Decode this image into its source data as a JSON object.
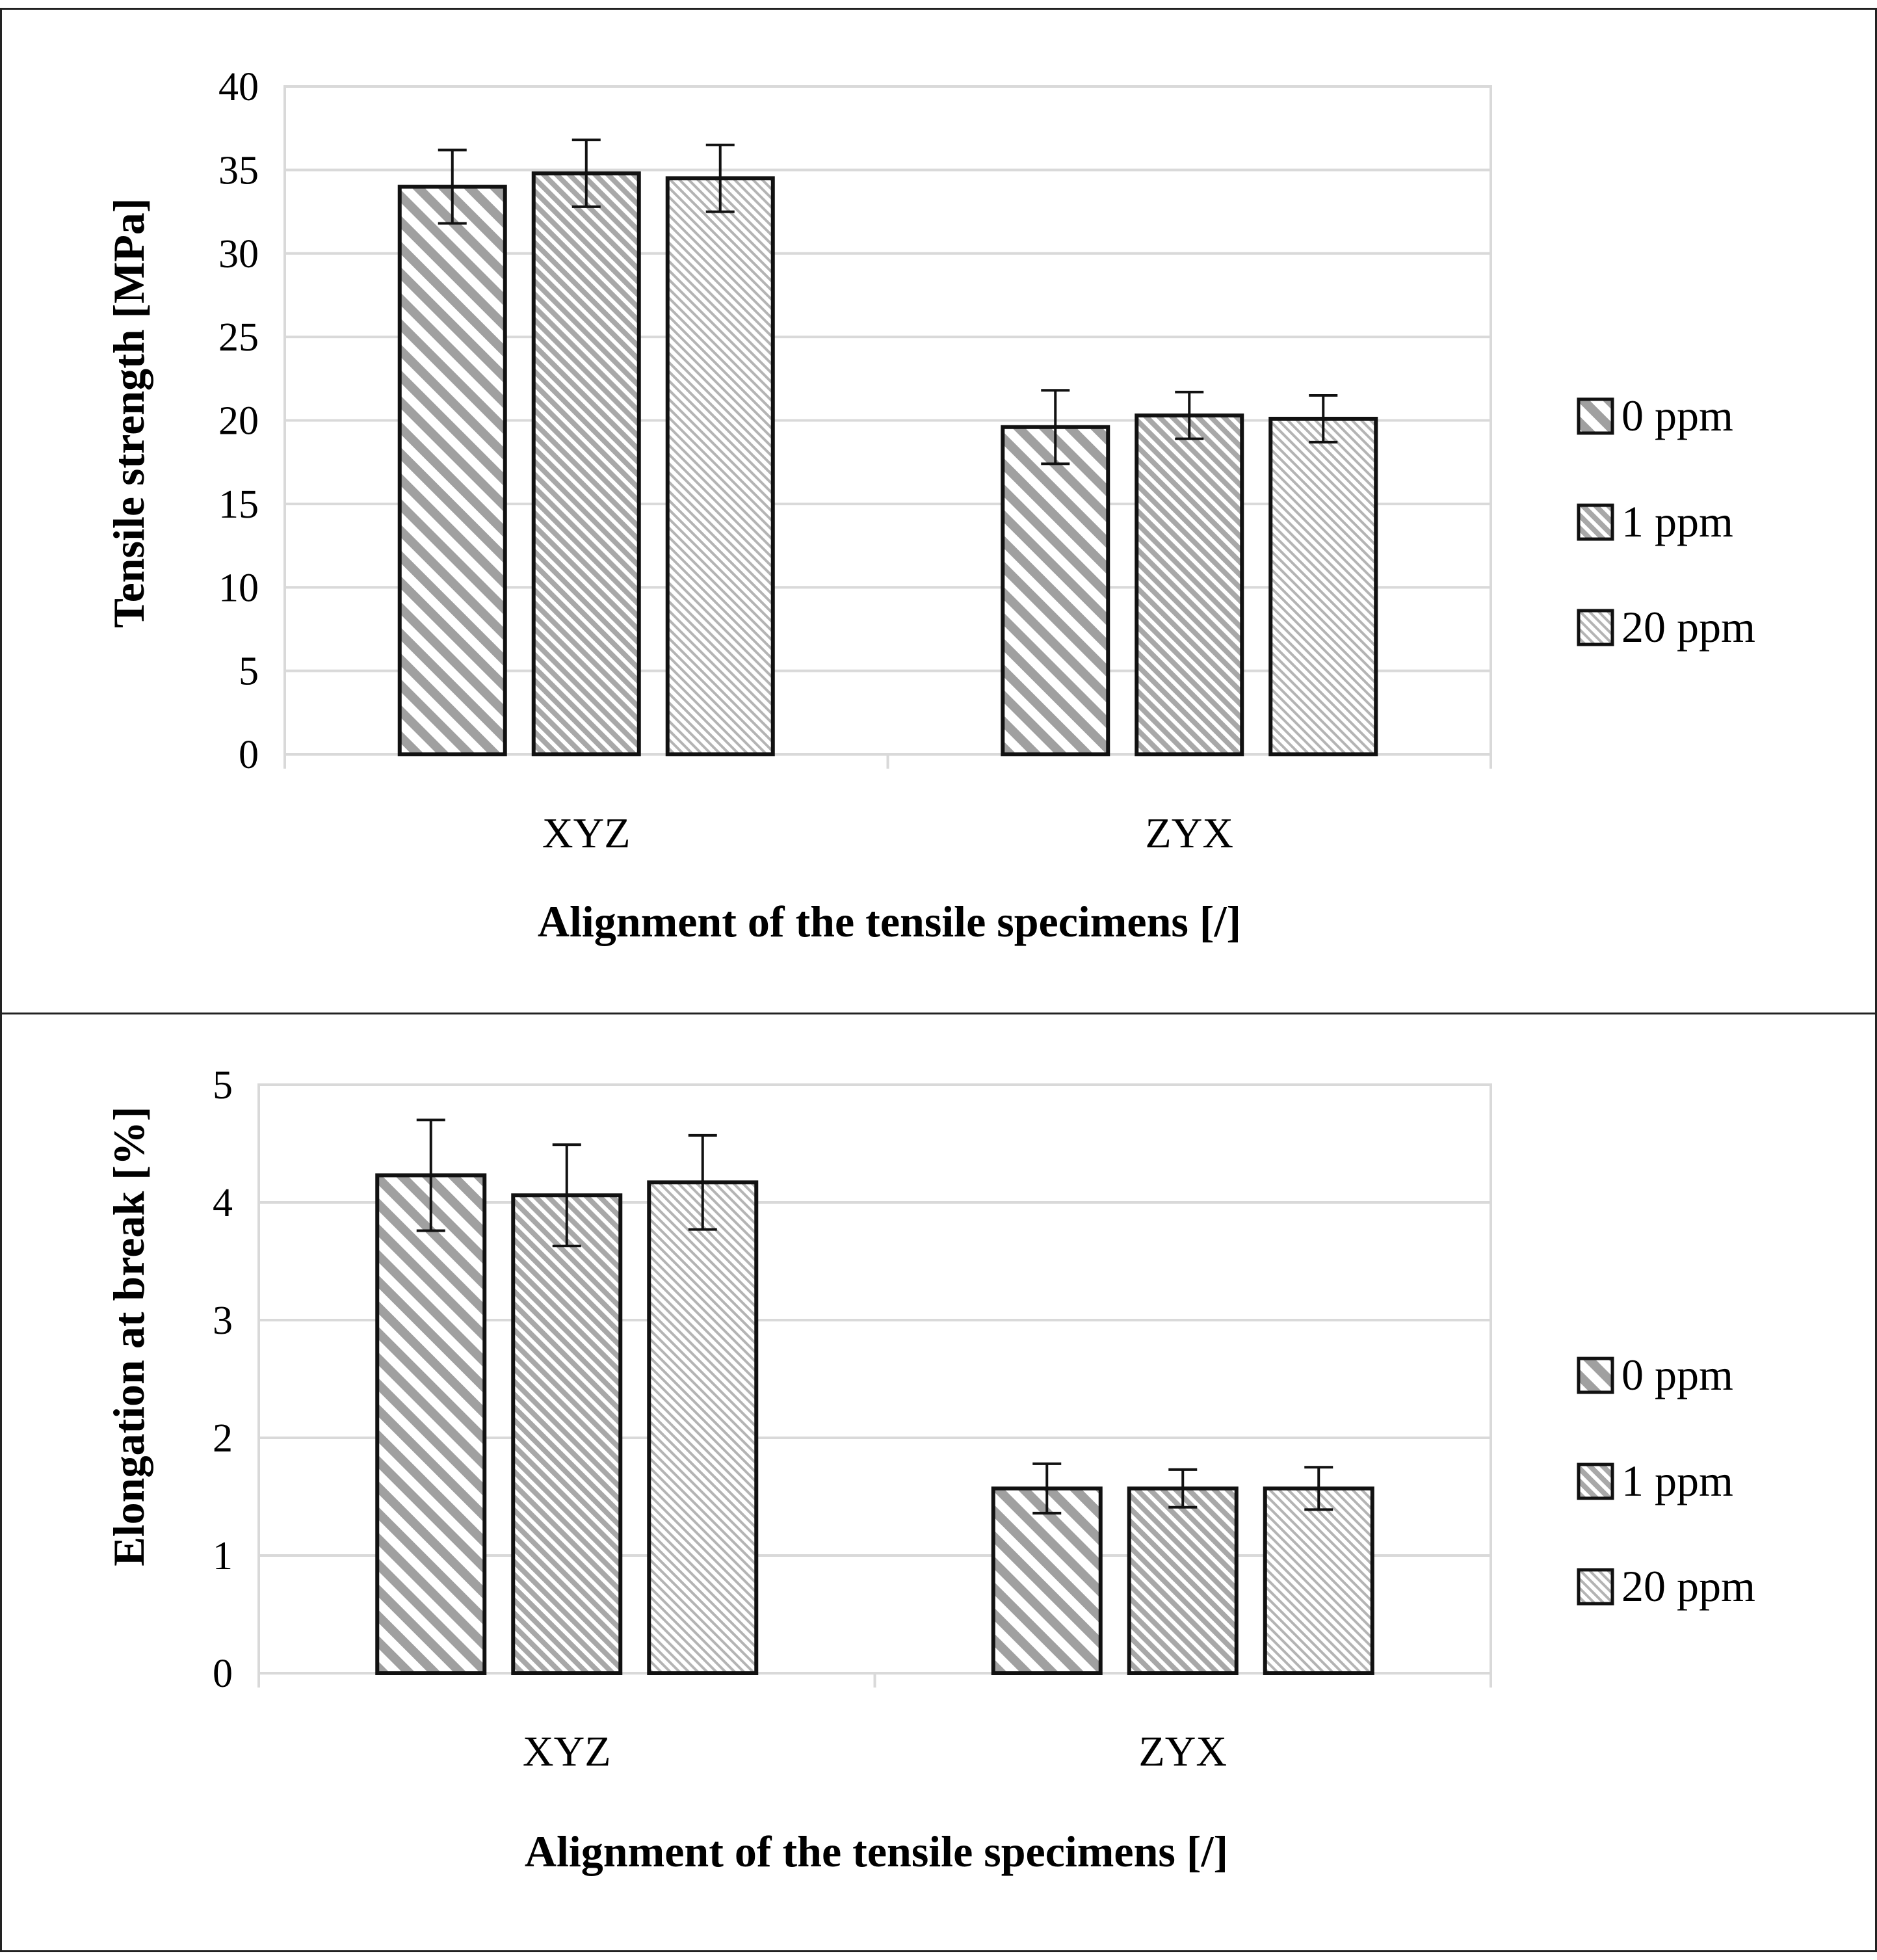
{
  "chart_data": [
    {
      "type": "bar",
      "title": "",
      "xlabel": "Alignment of the tensile specimens [/]",
      "ylabel": "Tensile strength [MPa]",
      "categories": [
        "XYZ",
        "ZYX"
      ],
      "ylim": [
        0,
        40
      ],
      "yticks": [
        0,
        5,
        10,
        15,
        20,
        25,
        30,
        35,
        40
      ],
      "grid": true,
      "legend_position": "right",
      "series": [
        {
          "name": "0 ppm",
          "pattern": "wide",
          "values": [
            34.0,
            19.6
          ],
          "errors": [
            2.2,
            2.2
          ]
        },
        {
          "name": "1 ppm",
          "pattern": "medium",
          "values": [
            34.8,
            20.3
          ],
          "errors": [
            2.0,
            1.4
          ]
        },
        {
          "name": "20 ppm",
          "pattern": "fine",
          "values": [
            34.5,
            20.1
          ],
          "errors": [
            2.0,
            1.4
          ]
        }
      ]
    },
    {
      "type": "bar",
      "title": "",
      "xlabel": "Alignment of the tensile specimens [/]",
      "ylabel": "Elongation at break [%]",
      "categories": [
        "XYZ",
        "ZYX"
      ],
      "ylim": [
        0,
        5
      ],
      "yticks": [
        0,
        1,
        2,
        3,
        4,
        5
      ],
      "grid": true,
      "legend_position": "right",
      "series": [
        {
          "name": "0 ppm",
          "pattern": "wide",
          "values": [
            4.23,
            1.57
          ],
          "errors": [
            0.47,
            0.21
          ]
        },
        {
          "name": "1 ppm",
          "pattern": "medium",
          "values": [
            4.06,
            1.57
          ],
          "errors": [
            0.43,
            0.16
          ]
        },
        {
          "name": "20 ppm",
          "pattern": "fine",
          "values": [
            4.17,
            1.57
          ],
          "errors": [
            0.4,
            0.18
          ]
        }
      ]
    }
  ]
}
